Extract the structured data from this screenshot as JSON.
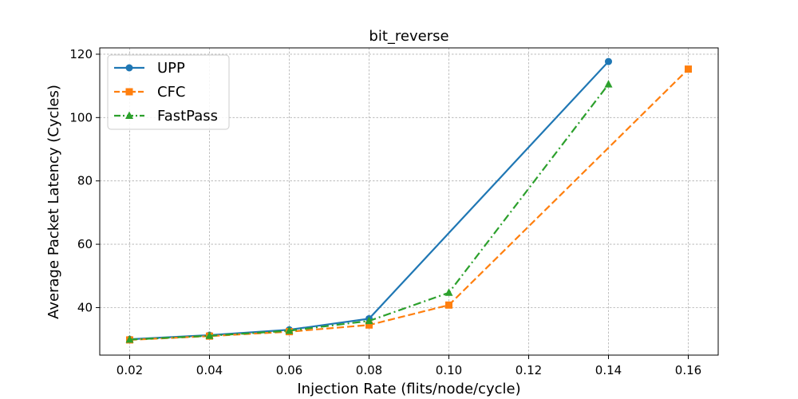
{
  "chart_data": {
    "type": "line",
    "title": "bit_reverse",
    "xlabel": "Injection Rate (flits/node/cycle)",
    "ylabel": "Average Packet Latency (Cycles)",
    "xlim": [
      0.0125,
      0.1675
    ],
    "ylim": [
      25,
      122
    ],
    "xticks": [
      0.02,
      0.04,
      0.06,
      0.08,
      0.1,
      0.12,
      0.14,
      0.16
    ],
    "xtick_labels": [
      "0.02",
      "0.04",
      "0.06",
      "0.08",
      "0.10",
      "0.12",
      "0.14",
      "0.16"
    ],
    "yticks": [
      40,
      60,
      80,
      100,
      120
    ],
    "ytick_labels": [
      "40",
      "60",
      "80",
      "100",
      "120"
    ],
    "grid": true,
    "legend_position": "top-left",
    "series": [
      {
        "name": "UPP",
        "color": "#1f77b4",
        "line_style": "solid",
        "marker": "circle",
        "x": [
          0.02,
          0.04,
          0.06,
          0.08,
          0.14
        ],
        "y": [
          30.0,
          31.3,
          33.0,
          36.5,
          117.7
        ]
      },
      {
        "name": "CFC",
        "color": "#ff7f0e",
        "line_style": "dashed",
        "marker": "square",
        "x": [
          0.02,
          0.04,
          0.06,
          0.08,
          0.1,
          0.16
        ],
        "y": [
          29.8,
          31.0,
          32.4,
          34.5,
          40.8,
          115.3
        ]
      },
      {
        "name": "FastPass",
        "color": "#2ca02c",
        "line_style": "dashdot",
        "marker": "triangle",
        "x": [
          0.02,
          0.04,
          0.06,
          0.08,
          0.1,
          0.14
        ],
        "y": [
          29.9,
          31.1,
          32.7,
          35.8,
          44.7,
          110.5
        ]
      }
    ]
  }
}
